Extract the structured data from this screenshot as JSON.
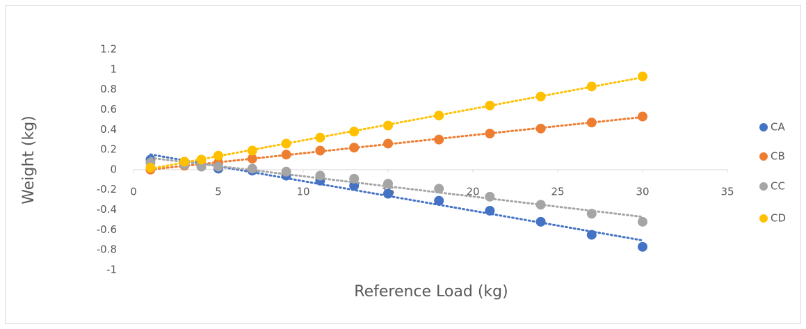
{
  "chart_data": {
    "type": "scatter",
    "xlabel": "Reference Load (kg)",
    "ylabel": "Weight (kg)",
    "x": [
      1,
      3,
      4,
      5,
      7,
      9,
      11,
      13,
      15,
      18,
      21,
      24,
      27,
      30
    ],
    "series": [
      {
        "name": "CA",
        "color": "#4472c4",
        "values": [
          0.1,
          0.07,
          0.04,
          0.01,
          -0.01,
          -0.06,
          -0.11,
          -0.16,
          -0.24,
          -0.31,
          -0.41,
          -0.52,
          -0.65,
          -0.77
        ]
      },
      {
        "name": "CB",
        "color": "#ed7d31",
        "values": [
          0.0,
          0.04,
          0.05,
          0.07,
          0.11,
          0.15,
          0.19,
          0.22,
          0.26,
          0.3,
          0.36,
          0.41,
          0.47,
          0.53
        ]
      },
      {
        "name": "CC",
        "color": "#a5a5a5",
        "values": [
          0.07,
          0.05,
          0.03,
          0.03,
          0.01,
          -0.02,
          -0.06,
          -0.09,
          -0.14,
          -0.19,
          -0.27,
          -0.35,
          -0.44,
          -0.52
        ]
      },
      {
        "name": "CD",
        "color": "#ffc000",
        "values": [
          0.02,
          0.08,
          0.1,
          0.14,
          0.19,
          0.26,
          0.32,
          0.38,
          0.44,
          0.54,
          0.64,
          0.73,
          0.83,
          0.93
        ]
      }
    ],
    "xlim": [
      0,
      35
    ],
    "xticks": [
      0,
      5,
      10,
      15,
      20,
      25,
      30,
      35
    ],
    "ylim": [
      -1,
      1.2
    ],
    "yticks": [
      -1,
      -0.8,
      -0.6,
      -0.4,
      -0.2,
      0,
      0.2,
      0.4,
      0.6,
      0.8,
      1,
      1.2
    ],
    "trendline": "linear",
    "grid": false,
    "legend": "right"
  }
}
